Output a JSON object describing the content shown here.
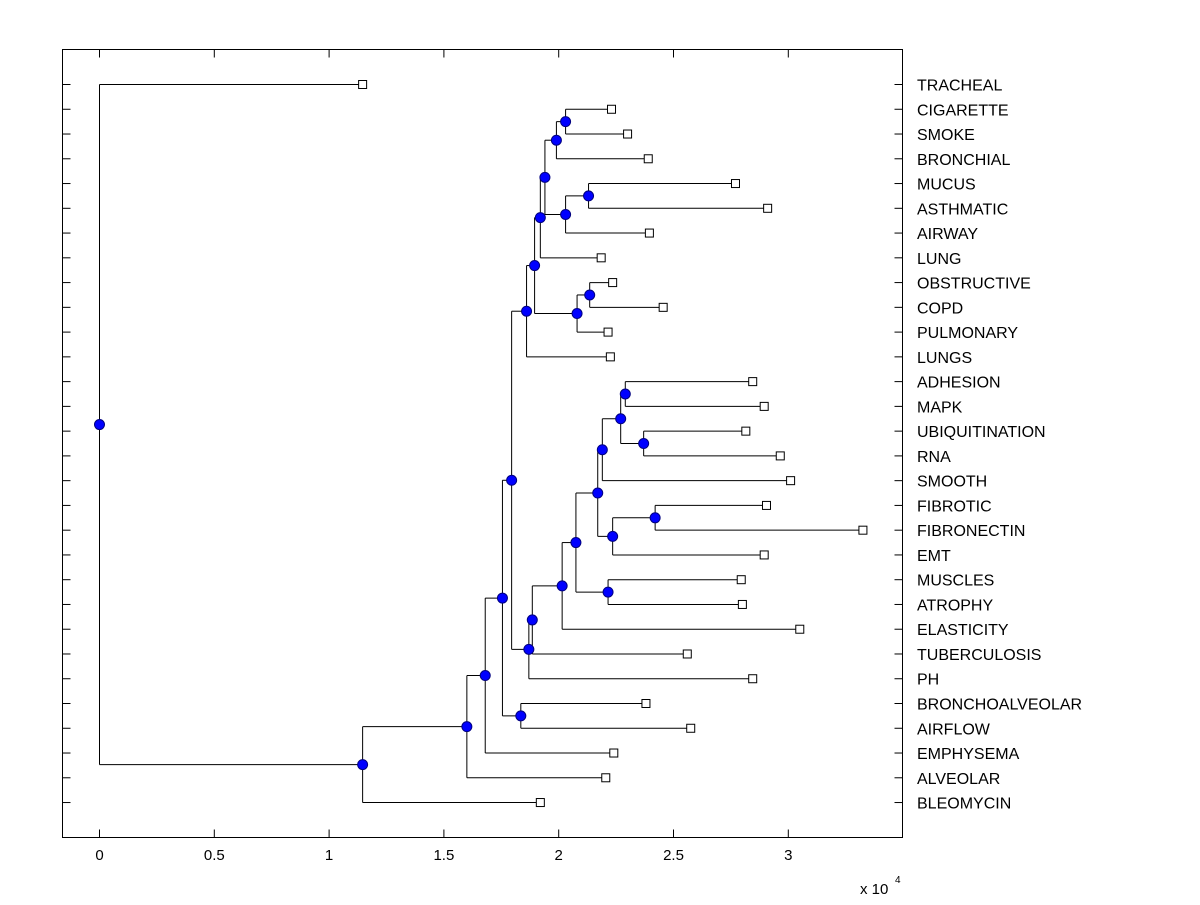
{
  "chart_data": {
    "type": "dendrogram",
    "title": "",
    "xlabel": "",
    "ylabel": "",
    "xlim": [
      -0.16,
      3.5
    ],
    "x_ticks": [
      {
        "value": 0,
        "label": "0"
      },
      {
        "value": 0.5,
        "label": "0.5"
      },
      {
        "value": 1,
        "label": "1"
      },
      {
        "value": 1.5,
        "label": "1.5"
      },
      {
        "value": 2,
        "label": "2"
      },
      {
        "value": 2.5,
        "label": "2.5"
      },
      {
        "value": 3,
        "label": "3"
      }
    ],
    "x_multiplier": {
      "base": "x 10",
      "exponent": "4"
    },
    "grid": false,
    "colors": {
      "node_fill": "#0000ff",
      "node_stroke": "#000080",
      "leaf_fill": "#ffffff",
      "line": "#000000"
    },
    "leaves": [
      {
        "id": "L0",
        "label": "TRACHEAL",
        "x": 1.146
      },
      {
        "id": "L1",
        "label": "CIGARETTE",
        "x": 2.23
      },
      {
        "id": "L2",
        "label": "SMOKE",
        "x": 2.3
      },
      {
        "id": "L3",
        "label": "BRONCHIAL",
        "x": 2.39
      },
      {
        "id": "L4",
        "label": "MUCUS",
        "x": 2.77
      },
      {
        "id": "L5",
        "label": "ASTHMATIC",
        "x": 2.91
      },
      {
        "id": "L6",
        "label": "AIRWAY",
        "x": 2.395
      },
      {
        "id": "L7",
        "label": "LUNG",
        "x": 2.185
      },
      {
        "id": "L8",
        "label": "OBSTRUCTIVE",
        "x": 2.235
      },
      {
        "id": "L9",
        "label": "COPD",
        "x": 2.455
      },
      {
        "id": "L10",
        "label": "PULMONARY",
        "x": 2.215
      },
      {
        "id": "L11",
        "label": "LUNGS",
        "x": 2.225
      },
      {
        "id": "L12",
        "label": "ADHESION",
        "x": 2.845
      },
      {
        "id": "L13",
        "label": "MAPK",
        "x": 2.895
      },
      {
        "id": "L14",
        "label": "UBIQUITINATION",
        "x": 2.815
      },
      {
        "id": "L15",
        "label": "RNA",
        "x": 2.965
      },
      {
        "id": "L16",
        "label": "SMOOTH",
        "x": 3.01
      },
      {
        "id": "L17",
        "label": "FIBROTIC",
        "x": 2.905
      },
      {
        "id": "L18",
        "label": "FIBRONECTIN",
        "x": 3.325
      },
      {
        "id": "L19",
        "label": "EMT",
        "x": 2.895
      },
      {
        "id": "L20",
        "label": "MUSCLES",
        "x": 2.795
      },
      {
        "id": "L21",
        "label": "ATROPHY",
        "x": 2.8
      },
      {
        "id": "L22",
        "label": "ELASTICITY",
        "x": 3.05
      },
      {
        "id": "L23",
        "label": "TUBERCULOSIS",
        "x": 2.56
      },
      {
        "id": "L24",
        "label": "PH",
        "x": 2.845
      },
      {
        "id": "L25",
        "label": "BRONCHOALVEOLAR",
        "x": 2.38
      },
      {
        "id": "L26",
        "label": "AIRFLOW",
        "x": 2.575
      },
      {
        "id": "L27",
        "label": "EMPHYSEMA",
        "x": 2.24
      },
      {
        "id": "L28",
        "label": "ALVEOLAR",
        "x": 2.205
      },
      {
        "id": "L29",
        "label": "BLEOMYCIN",
        "x": 1.92
      }
    ],
    "merges": [
      {
        "id": "N0",
        "x": 2.03,
        "children": [
          "L1",
          "L2"
        ]
      },
      {
        "id": "N1",
        "x": 1.99,
        "children": [
          "N0",
          "L3"
        ]
      },
      {
        "id": "N2",
        "x": 2.13,
        "children": [
          "L4",
          "L5"
        ]
      },
      {
        "id": "N3",
        "x": 2.03,
        "children": [
          "N2",
          "L6"
        ]
      },
      {
        "id": "N4",
        "x": 1.94,
        "children": [
          "N1",
          "N3"
        ]
      },
      {
        "id": "N5",
        "x": 1.92,
        "children": [
          "N4",
          "L7"
        ]
      },
      {
        "id": "N6",
        "x": 2.135,
        "children": [
          "L8",
          "L9"
        ]
      },
      {
        "id": "N7",
        "x": 2.08,
        "children": [
          "N6",
          "L10"
        ]
      },
      {
        "id": "N8",
        "x": 1.895,
        "children": [
          "N5",
          "N7"
        ]
      },
      {
        "id": "N9",
        "x": 1.86,
        "children": [
          "N8",
          "L11"
        ]
      },
      {
        "id": "N10",
        "x": 2.29,
        "children": [
          "L12",
          "L13"
        ]
      },
      {
        "id": "N11",
        "x": 2.37,
        "children": [
          "L14",
          "L15"
        ]
      },
      {
        "id": "N12",
        "x": 2.27,
        "children": [
          "N10",
          "N11"
        ]
      },
      {
        "id": "N13",
        "x": 2.19,
        "children": [
          "N12",
          "L16"
        ]
      },
      {
        "id": "N14",
        "x": 2.42,
        "children": [
          "L17",
          "L18"
        ]
      },
      {
        "id": "N15",
        "x": 2.235,
        "children": [
          "N14",
          "L19"
        ]
      },
      {
        "id": "N16",
        "x": 2.17,
        "children": [
          "N13",
          "N15"
        ]
      },
      {
        "id": "N17",
        "x": 2.215,
        "children": [
          "L20",
          "L21"
        ]
      },
      {
        "id": "N18",
        "x": 2.075,
        "children": [
          "N16",
          "N17"
        ]
      },
      {
        "id": "N19",
        "x": 2.015,
        "children": [
          "N18",
          "L22"
        ]
      },
      {
        "id": "N20",
        "x": 1.885,
        "children": [
          "N19",
          "L23"
        ]
      },
      {
        "id": "N21",
        "x": 1.87,
        "children": [
          "N20",
          "L24"
        ]
      },
      {
        "id": "N22",
        "x": 1.795,
        "children": [
          "N9",
          "N21"
        ]
      },
      {
        "id": "N23",
        "x": 1.835,
        "children": [
          "L25",
          "L26"
        ]
      },
      {
        "id": "N24",
        "x": 1.755,
        "children": [
          "N22",
          "N23"
        ]
      },
      {
        "id": "N25",
        "x": 1.68,
        "children": [
          "N24",
          "L27"
        ]
      },
      {
        "id": "N26",
        "x": 1.6,
        "children": [
          "N25",
          "L28"
        ]
      },
      {
        "id": "N27",
        "x": 1.146,
        "children": [
          "N26",
          "L29"
        ]
      },
      {
        "id": "N28",
        "x": 0,
        "children": [
          "L0",
          "N27"
        ]
      }
    ]
  }
}
